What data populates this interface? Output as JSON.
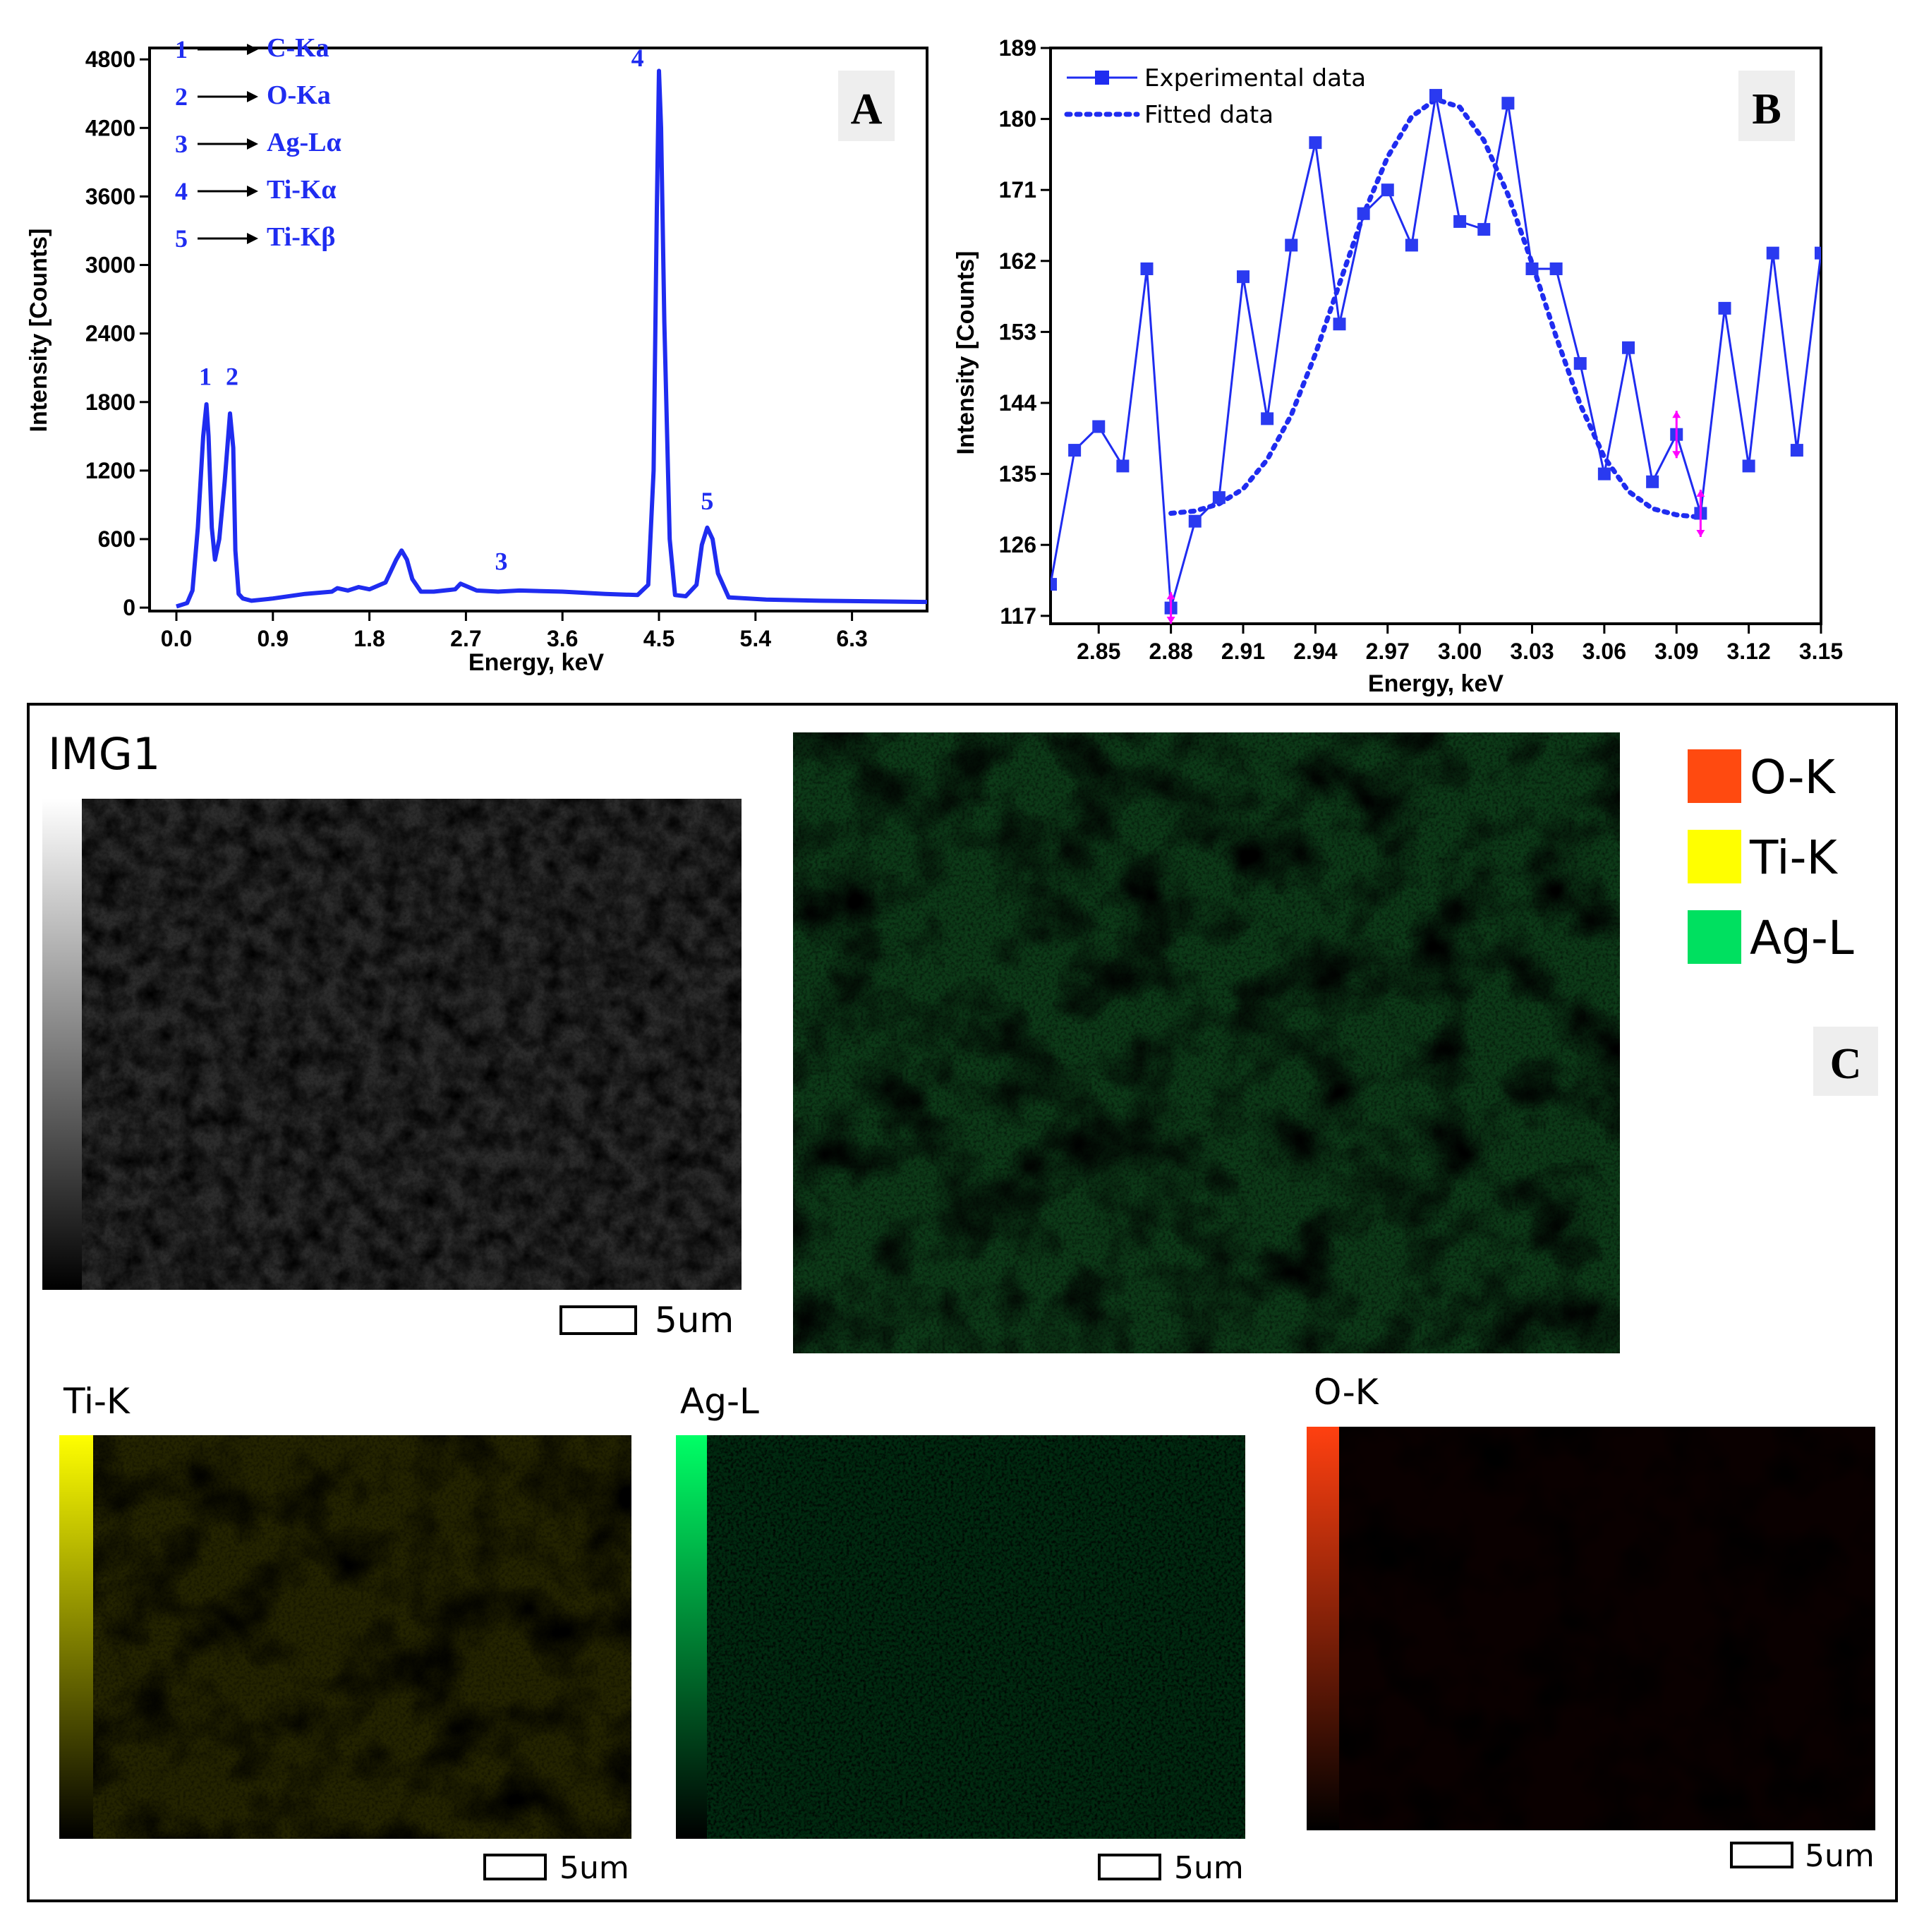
{
  "colors": {
    "series": "#1f2cf0",
    "axis": "#000000",
    "marker": "#2a3af0",
    "error_bar": "#ff00ff",
    "legend_o": "#ff4a10",
    "legend_ti": "#ffff00",
    "legend_ag": "#00e060"
  },
  "chart_data": [
    {
      "panel_label": "A",
      "type": "line",
      "xlabel": "Energy, keV",
      "ylabel": "Intensity [Counts]",
      "xlim": [
        -0.25,
        7.0
      ],
      "ylim": [
        -30,
        4900
      ],
      "xticks": [
        "0.0",
        "0.9",
        "1.8",
        "2.7",
        "3.6",
        "4.5",
        "5.4",
        "6.3"
      ],
      "xtick_values": [
        0.0,
        0.9,
        1.8,
        2.7,
        3.6,
        4.5,
        5.4,
        6.3
      ],
      "yticks": [
        "0",
        "600",
        "1200",
        "1800",
        "2400",
        "3000",
        "3600",
        "4200",
        "4800"
      ],
      "ytick_values": [
        0,
        600,
        1200,
        1800,
        2400,
        3000,
        3600,
        4200,
        4800
      ],
      "series": [
        {
          "x": [
            0.0,
            0.1,
            0.15,
            0.2,
            0.25,
            0.28,
            0.3,
            0.33,
            0.36,
            0.4,
            0.45,
            0.5,
            0.53,
            0.55,
            0.58,
            0.62,
            0.7,
            0.9,
            1.2,
            1.45,
            1.5,
            1.6,
            1.7,
            1.8,
            1.95,
            2.05,
            2.1,
            2.15,
            2.2,
            2.28,
            2.4,
            2.6,
            2.65,
            2.8,
            3.0,
            3.2,
            3.6,
            4.0,
            4.3,
            4.4,
            4.45,
            4.48,
            4.5,
            4.52,
            4.55,
            4.6,
            4.65,
            4.75,
            4.85,
            4.9,
            4.95,
            5.0,
            5.05,
            5.15,
            5.5,
            6.0,
            6.5,
            7.0
          ],
          "y": [
            10,
            40,
            150,
            700,
            1500,
            1780,
            1500,
            700,
            420,
            600,
            1100,
            1700,
            1400,
            500,
            120,
            80,
            60,
            80,
            120,
            140,
            170,
            150,
            180,
            160,
            220,
            420,
            500,
            420,
            250,
            140,
            140,
            160,
            210,
            150,
            140,
            150,
            140,
            120,
            110,
            200,
            1200,
            3500,
            4700,
            4200,
            2500,
            600,
            110,
            100,
            200,
            550,
            700,
            600,
            300,
            90,
            70,
            60,
            55,
            50
          ]
        }
      ],
      "peak_labels": [
        {
          "text": "1",
          "x": 0.27,
          "y": 1950
        },
        {
          "text": "2",
          "x": 0.52,
          "y": 1950
        },
        {
          "text": "3",
          "x": 3.03,
          "y": 330
        },
        {
          "text": "4",
          "x": 4.3,
          "y": 4740
        },
        {
          "text": "5",
          "x": 4.95,
          "y": 860
        }
      ],
      "legend_entries": [
        {
          "num": "1",
          "label": "C-Ka"
        },
        {
          "num": "2",
          "label": "O-Ka"
        },
        {
          "num": "3",
          "label": "Ag-Lα"
        },
        {
          "num": "4",
          "label": "Ti-Kα"
        },
        {
          "num": "5",
          "label": "Ti-Kβ"
        }
      ]
    },
    {
      "panel_label": "B",
      "type": "line",
      "xlabel": "Energy, keV",
      "ylabel": "Intensity [Counts]",
      "xlim": [
        2.83,
        3.15
      ],
      "ylim": [
        116,
        189
      ],
      "xticks": [
        "2.85",
        "2.88",
        "2.91",
        "2.94",
        "2.97",
        "3.00",
        "3.03",
        "3.06",
        "3.09",
        "3.12",
        "3.15"
      ],
      "xtick_values": [
        2.85,
        2.88,
        2.91,
        2.94,
        2.97,
        3.0,
        3.03,
        3.06,
        3.09,
        3.12,
        3.15
      ],
      "yticks": [
        "117",
        "126",
        "135",
        "144",
        "153",
        "162",
        "171",
        "180",
        "189"
      ],
      "ytick_values": [
        117,
        126,
        135,
        144,
        153,
        162,
        171,
        180,
        189
      ],
      "legend": "top-left",
      "series": [
        {
          "name": "Experimental data",
          "x": [
            2.83,
            2.84,
            2.85,
            2.86,
            2.87,
            2.88,
            2.89,
            2.9,
            2.91,
            2.92,
            2.93,
            2.94,
            2.95,
            2.96,
            2.97,
            2.98,
            2.99,
            3.0,
            3.01,
            3.02,
            3.03,
            3.04,
            3.05,
            3.06,
            3.07,
            3.08,
            3.09,
            3.1,
            3.11,
            3.12,
            3.13,
            3.14,
            3.15
          ],
          "y": [
            121,
            138,
            141,
            136,
            161,
            118,
            129,
            132,
            160,
            142,
            164,
            177,
            154,
            168,
            171,
            164,
            183,
            167,
            166,
            182,
            161,
            161,
            149,
            135,
            151,
            134,
            140,
            130,
            156,
            136,
            163,
            138,
            163
          ]
        },
        {
          "name": "Fitted data",
          "x": [
            2.88,
            2.89,
            2.9,
            2.91,
            2.92,
            2.93,
            2.94,
            2.95,
            2.96,
            2.97,
            2.98,
            2.99,
            3.0,
            3.01,
            3.02,
            3.03,
            3.04,
            3.05,
            3.06,
            3.07,
            3.08,
            3.09,
            3.1
          ],
          "y": [
            130,
            130.3,
            131.2,
            133.1,
            136.8,
            142.5,
            150.2,
            159.1,
            167.9,
            175.2,
            180.3,
            182.5,
            181.5,
            177.3,
            170.4,
            161.7,
            152.4,
            143.8,
            137.1,
            132.8,
            130.6,
            129.8,
            129.5
          ]
        }
      ],
      "error_bars": [
        {
          "x": 2.88,
          "low": 116,
          "high": 120
        },
        {
          "x": 3.09,
          "low": 137,
          "high": 143
        },
        {
          "x": 3.1,
          "low": 127,
          "high": 133
        }
      ]
    }
  ],
  "panel_c": {
    "panel_label": "C",
    "img_title": "IMG1",
    "legend": [
      {
        "label": "O-K",
        "color": "#ff4a10"
      },
      {
        "label": "Ti-K",
        "color": "#ffff00"
      },
      {
        "label": "Ag-L",
        "color": "#00e060"
      }
    ],
    "maps": [
      {
        "label": "Ti-K",
        "color": "#ffff00"
      },
      {
        "label": "Ag-L",
        "color": "#00ff66"
      },
      {
        "label": "O-K",
        "color": "#ff4a10"
      }
    ],
    "scale_label": "5um"
  }
}
